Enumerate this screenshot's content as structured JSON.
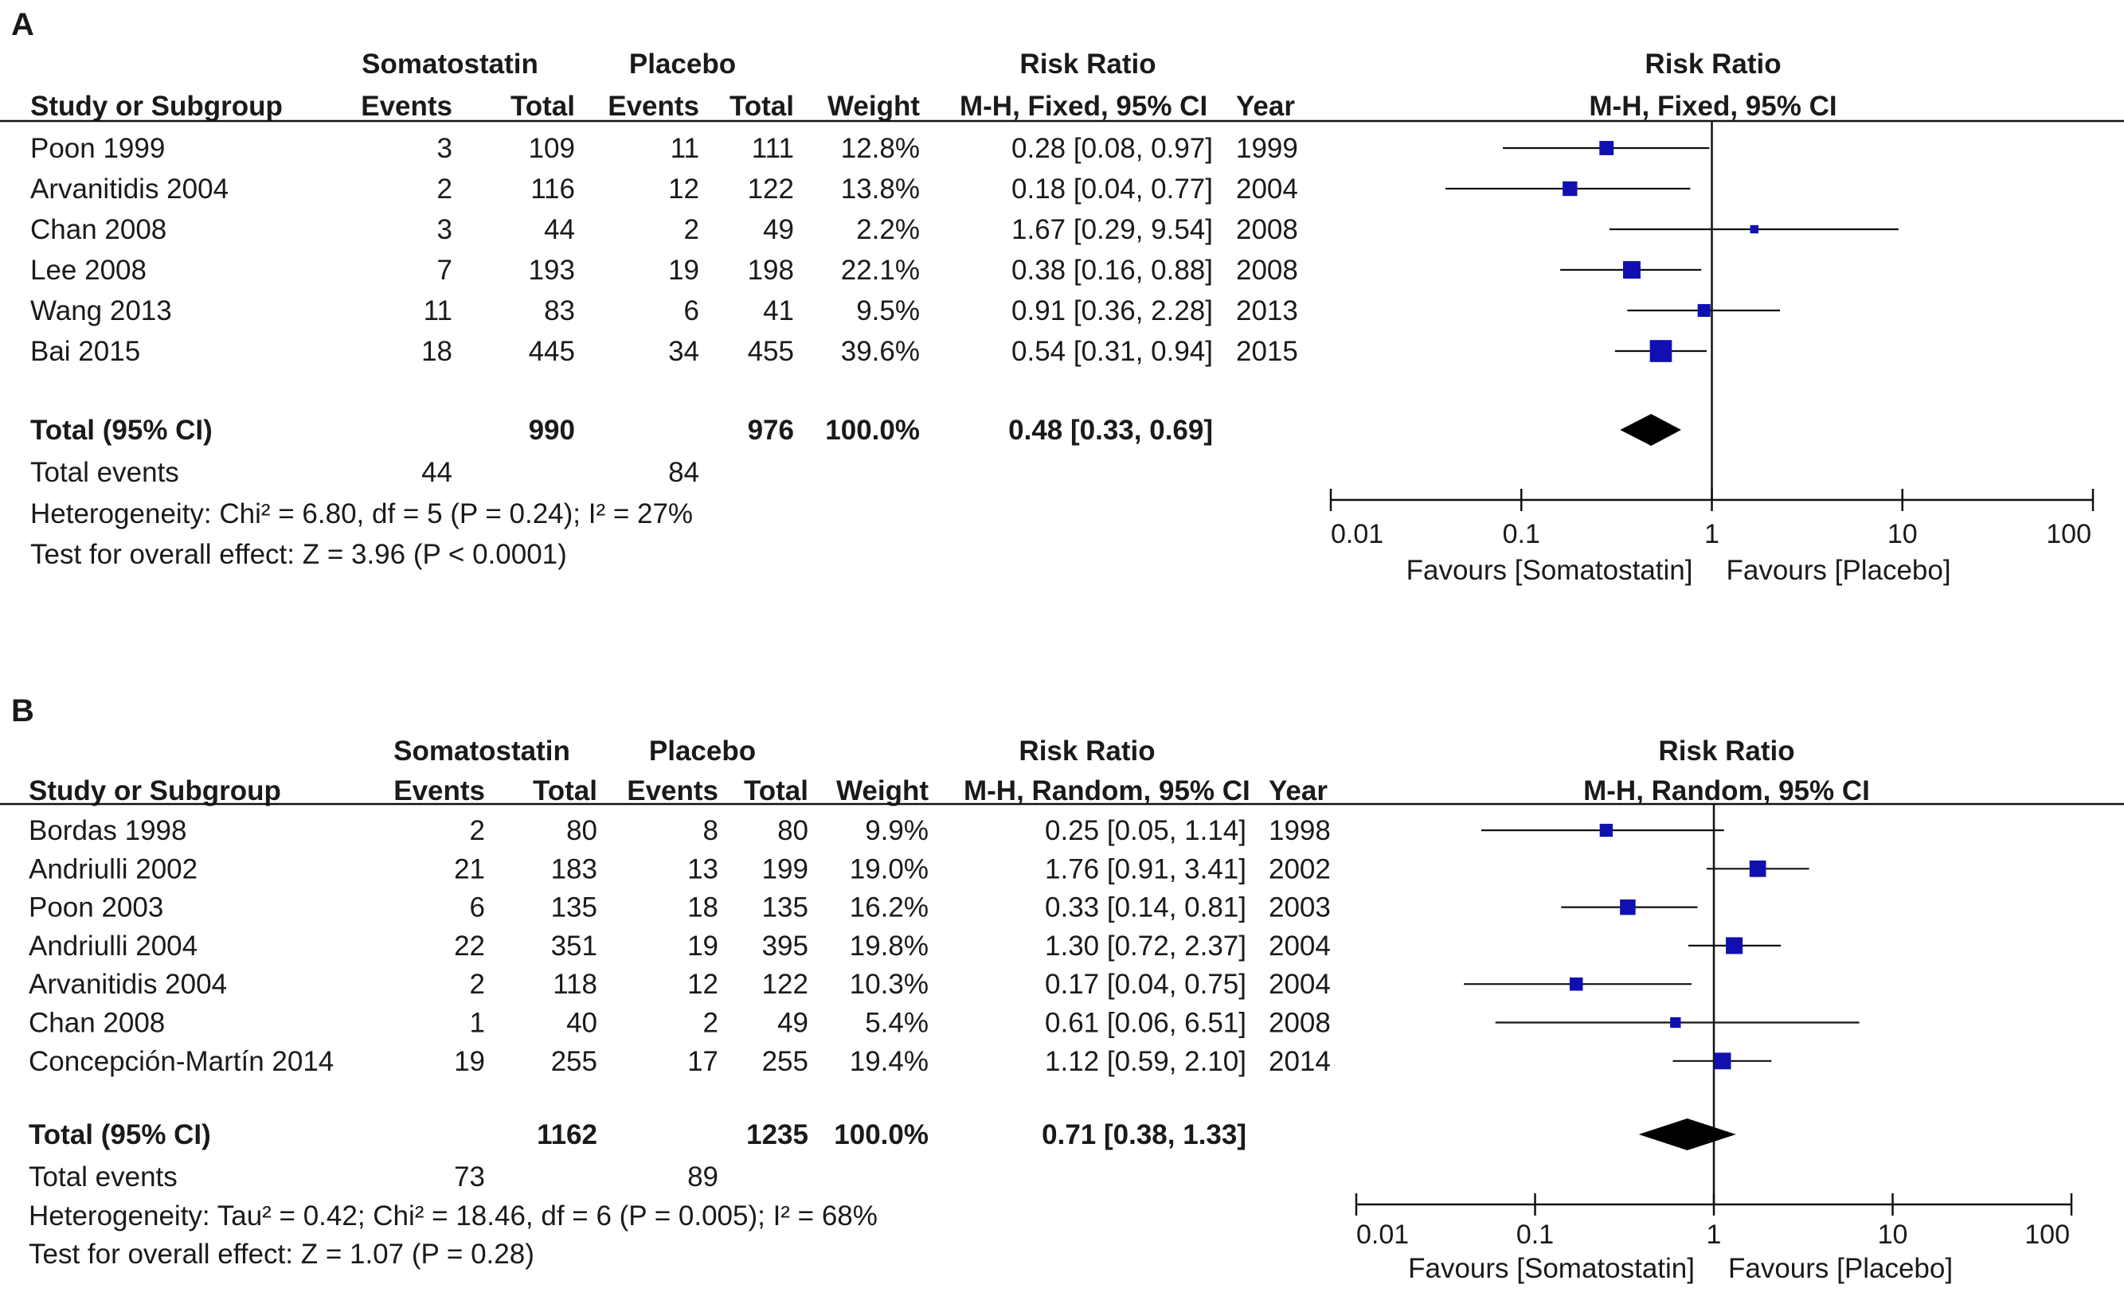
{
  "chart_data": [
    {
      "type": "forest",
      "panel_label": "A",
      "group_labels": {
        "experimental": "Somatostatin",
        "control": "Placebo",
        "effect": "Risk Ratio",
        "plot": "Risk Ratio"
      },
      "columns": {
        "study": "Study or Subgroup",
        "events": "Events",
        "total": "Total",
        "weight": "Weight",
        "method": "M-H, Fixed, 95% CI",
        "year": "Year",
        "plot_method": "M-H, Fixed, 95% CI"
      },
      "studies": [
        {
          "name": "Poon 1999",
          "exp_events": "3",
          "exp_total": "109",
          "ctl_events": "11",
          "ctl_total": "111",
          "weight": "12.8%",
          "ci_text": "0.28 [0.08, 0.97]",
          "year": "1999",
          "rr": 0.28,
          "lo": 0.08,
          "hi": 0.97,
          "w": 12.8
        },
        {
          "name": "Arvanitidis 2004",
          "exp_events": "2",
          "exp_total": "116",
          "ctl_events": "12",
          "ctl_total": "122",
          "weight": "13.8%",
          "ci_text": "0.18 [0.04, 0.77]",
          "year": "2004",
          "rr": 0.18,
          "lo": 0.04,
          "hi": 0.77,
          "w": 13.8
        },
        {
          "name": "Chan 2008",
          "exp_events": "3",
          "exp_total": "44",
          "ctl_events": "2",
          "ctl_total": "49",
          "weight": "2.2%",
          "ci_text": "1.67 [0.29, 9.54]",
          "year": "2008",
          "rr": 1.67,
          "lo": 0.29,
          "hi": 9.54,
          "w": 2.2
        },
        {
          "name": "Lee 2008",
          "exp_events": "7",
          "exp_total": "193",
          "ctl_events": "19",
          "ctl_total": "198",
          "weight": "22.1%",
          "ci_text": "0.38 [0.16, 0.88]",
          "year": "2008",
          "rr": 0.38,
          "lo": 0.16,
          "hi": 0.88,
          "w": 22.1
        },
        {
          "name": "Wang 2013",
          "exp_events": "11",
          "exp_total": "83",
          "ctl_events": "6",
          "ctl_total": "41",
          "weight": "9.5%",
          "ci_text": "0.91 [0.36, 2.28]",
          "year": "2013",
          "rr": 0.91,
          "lo": 0.36,
          "hi": 2.28,
          "w": 9.5
        },
        {
          "name": "Bai 2015",
          "exp_events": "18",
          "exp_total": "445",
          "ctl_events": "34",
          "ctl_total": "455",
          "weight": "39.6%",
          "ci_text": "0.54 [0.31, 0.94]",
          "year": "2015",
          "rr": 0.54,
          "lo": 0.31,
          "hi": 0.94,
          "w": 39.6
        }
      ],
      "total": {
        "label": "Total (95% CI)",
        "exp_total": "990",
        "ctl_total": "976",
        "weight": "100.0%",
        "ci_text": "0.48 [0.33, 0.69]",
        "rr": 0.48,
        "lo": 0.33,
        "hi": 0.69
      },
      "total_events": {
        "label": "Total events",
        "exp": "44",
        "ctl": "84"
      },
      "heterogeneity": "Heterogeneity: Chi² = 6.80, df = 5 (P = 0.24); I² = 27%",
      "overall_effect": "Test for overall effect: Z = 3.96 (P < 0.0001)",
      "axis": {
        "scale": "log",
        "range": [
          0.01,
          100
        ],
        "ticks": [
          0.01,
          0.1,
          1,
          10,
          100
        ],
        "tick_labels": [
          "0.01",
          "0.1",
          "1",
          "10",
          "100"
        ]
      },
      "favours_left": "Favours [Somatostatin]",
      "favours_right": "Favours [Placebo]",
      "marker_color": "#1010b0"
    },
    {
      "type": "forest",
      "panel_label": "B",
      "group_labels": {
        "experimental": "Somatostatin",
        "control": "Placebo",
        "effect": "Risk Ratio",
        "plot": "Risk Ratio"
      },
      "columns": {
        "study": "Study or Subgroup",
        "events": "Events",
        "total": "Total",
        "weight": "Weight",
        "method": "M-H, Random, 95% CI",
        "year": "Year",
        "plot_method": "M-H, Random, 95% CI"
      },
      "studies": [
        {
          "name": "Bordas 1998",
          "exp_events": "2",
          "exp_total": "80",
          "ctl_events": "8",
          "ctl_total": "80",
          "weight": "9.9%",
          "ci_text": "0.25 [0.05, 1.14]",
          "year": "1998",
          "rr": 0.25,
          "lo": 0.05,
          "hi": 1.14,
          "w": 9.9
        },
        {
          "name": "Andriulli 2002",
          "exp_events": "21",
          "exp_total": "183",
          "ctl_events": "13",
          "ctl_total": "199",
          "weight": "19.0%",
          "ci_text": "1.76 [0.91, 3.41]",
          "year": "2002",
          "rr": 1.76,
          "lo": 0.91,
          "hi": 3.41,
          "w": 19.0
        },
        {
          "name": "Poon 2003",
          "exp_events": "6",
          "exp_total": "135",
          "ctl_events": "18",
          "ctl_total": "135",
          "weight": "16.2%",
          "ci_text": "0.33 [0.14, 0.81]",
          "year": "2003",
          "rr": 0.33,
          "lo": 0.14,
          "hi": 0.81,
          "w": 16.2
        },
        {
          "name": "Andriulli 2004",
          "exp_events": "22",
          "exp_total": "351",
          "ctl_events": "19",
          "ctl_total": "395",
          "weight": "19.8%",
          "ci_text": "1.30 [0.72, 2.37]",
          "year": "2004",
          "rr": 1.3,
          "lo": 0.72,
          "hi": 2.37,
          "w": 19.8
        },
        {
          "name": "Arvanitidis 2004",
          "exp_events": "2",
          "exp_total": "118",
          "ctl_events": "12",
          "ctl_total": "122",
          "weight": "10.3%",
          "ci_text": "0.17 [0.04, 0.75]",
          "year": "2004",
          "rr": 0.17,
          "lo": 0.04,
          "hi": 0.75,
          "w": 10.3
        },
        {
          "name": "Chan 2008",
          "exp_events": "1",
          "exp_total": "40",
          "ctl_events": "2",
          "ctl_total": "49",
          "weight": "5.4%",
          "ci_text": "0.61 [0.06, 6.51]",
          "year": "2008",
          "rr": 0.61,
          "lo": 0.06,
          "hi": 6.51,
          "w": 5.4
        },
        {
          "name": "Concepción-Martín 2014",
          "exp_events": "19",
          "exp_total": "255",
          "ctl_events": "17",
          "ctl_total": "255",
          "weight": "19.4%",
          "ci_text": "1.12 [0.59, 2.10]",
          "year": "2014",
          "rr": 1.12,
          "lo": 0.59,
          "hi": 2.1,
          "w": 19.4
        }
      ],
      "total": {
        "label": "Total (95% CI)",
        "exp_total": "1162",
        "ctl_total": "1235",
        "weight": "100.0%",
        "ci_text": "0.71 [0.38, 1.33]",
        "rr": 0.71,
        "lo": 0.38,
        "hi": 1.33
      },
      "total_events": {
        "label": "Total events",
        "exp": "73",
        "ctl": "89"
      },
      "heterogeneity": "Heterogeneity: Tau² = 0.42; Chi² = 18.46, df = 6 (P = 0.005); I² = 68%",
      "overall_effect": "Test for overall effect: Z = 1.07 (P = 0.28)",
      "axis": {
        "scale": "log",
        "range": [
          0.01,
          100
        ],
        "ticks": [
          0.01,
          0.1,
          1,
          10,
          100
        ],
        "tick_labels": [
          "0.01",
          "0.1",
          "1",
          "10",
          "100"
        ]
      },
      "favours_left": "Favours [Somatostatin]",
      "favours_right": "Favours [Placebo]",
      "marker_color": "#1010b0"
    }
  ]
}
